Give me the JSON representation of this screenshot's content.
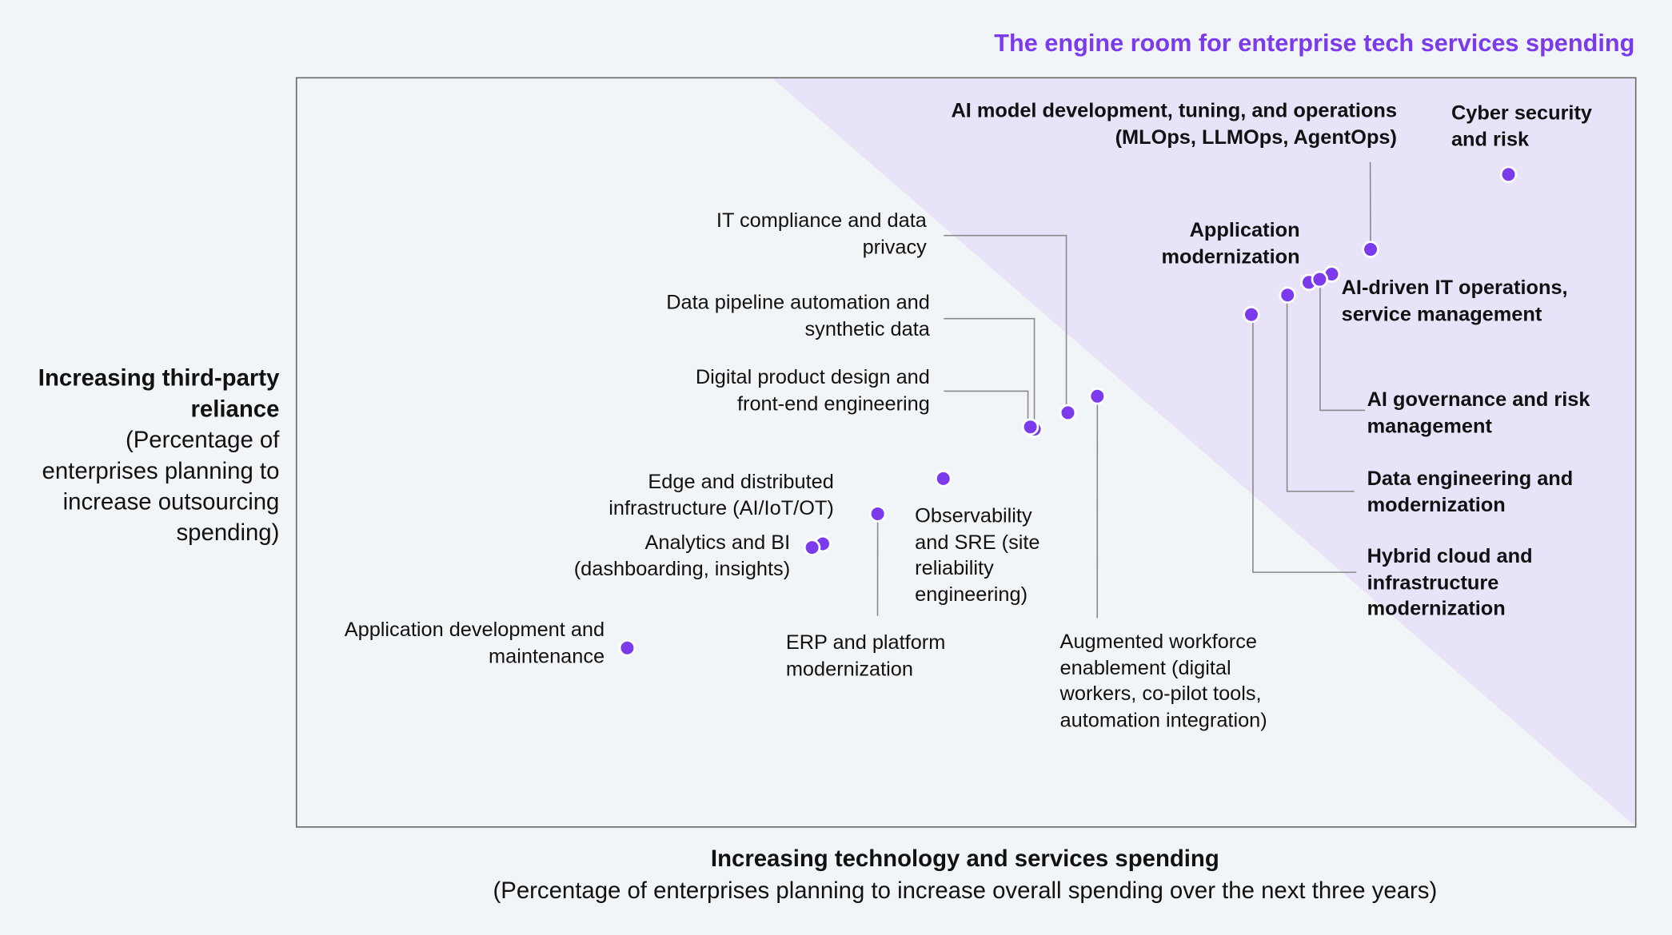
{
  "chart_data": {
    "type": "scatter",
    "title": "The engine room for enterprise tech services spending",
    "x_label": "Increasing technology and services spending",
    "x_sublabel": "(Percentage of enterprises planning to increase overall spending over the next three years)",
    "y_label": "Increasing third-party reliance",
    "y_sublabel": "(Percentage of enterprises planning to increase outsourcing spending)",
    "xlim": [
      0,
      100
    ],
    "ylim": [
      0,
      100
    ],
    "color": "#7c3aed",
    "points": [
      {
        "label": "Cyber security and risk",
        "x": 90.5,
        "y": 87.1
      },
      {
        "label": "AI model development, tuning, and operations (MLOps, LLMOps, AgentOps)",
        "x": 80.2,
        "y": 77.1
      },
      {
        "label": "Application modernization",
        "x": 75.6,
        "y": 72.7
      },
      {
        "label": "AI-driven IT operations, service management",
        "x": 77.3,
        "y": 73.8
      },
      {
        "label": "AI governance and risk management",
        "x": 76.4,
        "y": 73.1
      },
      {
        "label": "Data engineering and modernization",
        "x": 74.0,
        "y": 71.0
      },
      {
        "label": "Hybrid cloud and infrastructure modernization",
        "x": 71.3,
        "y": 68.4
      },
      {
        "label": "IT compliance and data privacy",
        "x": 57.6,
        "y": 55.3
      },
      {
        "label": "Data pipeline automation and synthetic data",
        "x": 55.1,
        "y": 53.1
      },
      {
        "label": "Digital product design and front-end engineering",
        "x": 54.8,
        "y": 53.4
      },
      {
        "label": "Augmented workforce enablement (digital workers, co-pilot tools, automation integration)",
        "x": 59.8,
        "y": 57.5
      },
      {
        "label": "Observability and SRE (site reliability engineering)",
        "x": 48.3,
        "y": 46.5
      },
      {
        "label": "Edge and distributed infrastructure (AI/IoT/OT)",
        "x": 39.3,
        "y": 37.8
      },
      {
        "label": "ERP and platform modernization",
        "x": 43.4,
        "y": 41.8
      },
      {
        "label": "Analytics and BI (dashboarding, insights)",
        "x": 38.5,
        "y": 37.3
      },
      {
        "label": "Application development and maintenance",
        "x": 24.7,
        "y": 23.9
      }
    ]
  }
}
